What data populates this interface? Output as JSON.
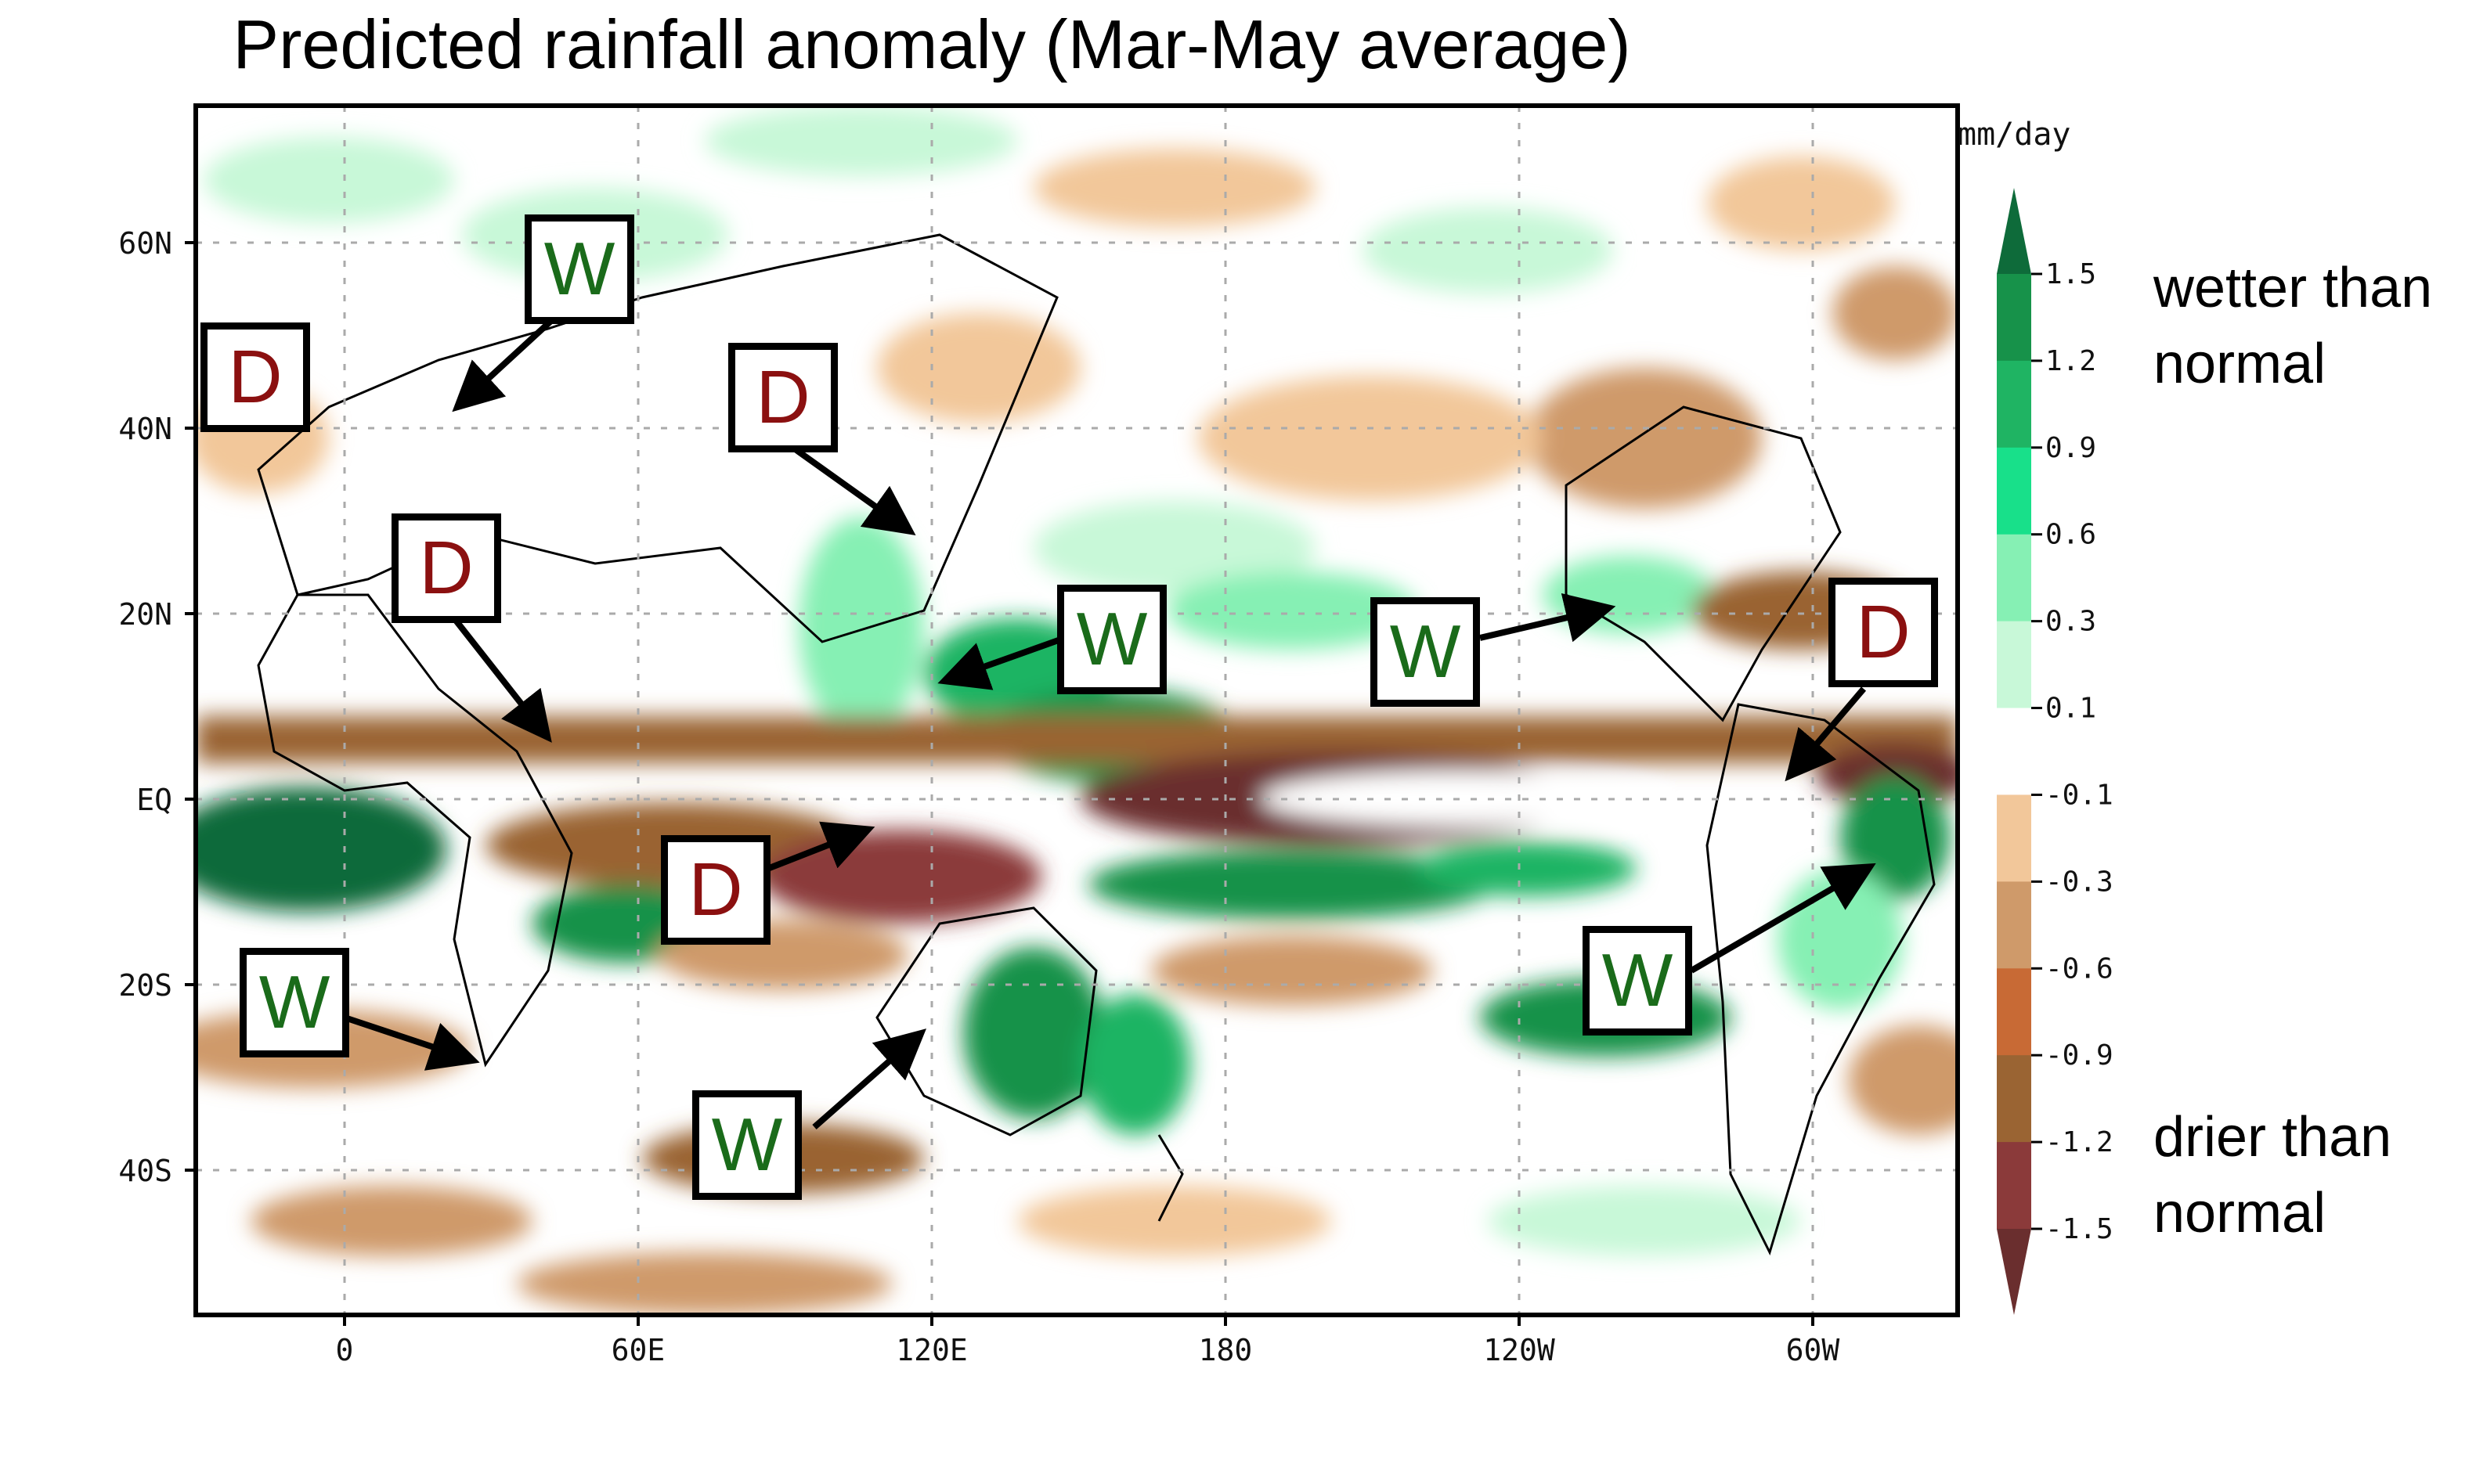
{
  "title": "Predicted rainfall anomaly (Mar-May average)",
  "units": "mm/day",
  "colorbar": {
    "levels": [
      "1.5",
      "1.2",
      "0.9",
      "0.6",
      "0.3",
      "0.1",
      "-0.1",
      "-0.3",
      "-0.6",
      "-0.9",
      "-1.2",
      "-1.5"
    ],
    "colors": [
      "#0e6b3a",
      "#17924a",
      "#1fb463",
      "#18e08a",
      "#86f0b4",
      "#c8f8d8",
      "#ffffff",
      "#f2c79a",
      "#cf9a6a",
      "#c86a35",
      "#9a6433",
      "#8b3a3a",
      "#6a2e2e"
    ],
    "wet_label": "wetter than normal",
    "dry_label": "drier than normal"
  },
  "lat_ticks": [
    "60N",
    "40N",
    "20N",
    "EQ",
    "20S",
    "40S"
  ],
  "lon_ticks": [
    "0",
    "60E",
    "120E",
    "180",
    "120W",
    "60W"
  ],
  "annotations": [
    {
      "letter": "D",
      "type": "dry"
    },
    {
      "letter": "W",
      "type": "wet"
    },
    {
      "letter": "D",
      "type": "dry"
    },
    {
      "letter": "D",
      "type": "dry"
    },
    {
      "letter": "W",
      "type": "wet"
    },
    {
      "letter": "W",
      "type": "wet"
    },
    {
      "letter": "D",
      "type": "dry"
    },
    {
      "letter": "D",
      "type": "dry"
    },
    {
      "letter": "W",
      "type": "wet"
    },
    {
      "letter": "W",
      "type": "wet"
    },
    {
      "letter": "W",
      "type": "wet"
    }
  ]
}
